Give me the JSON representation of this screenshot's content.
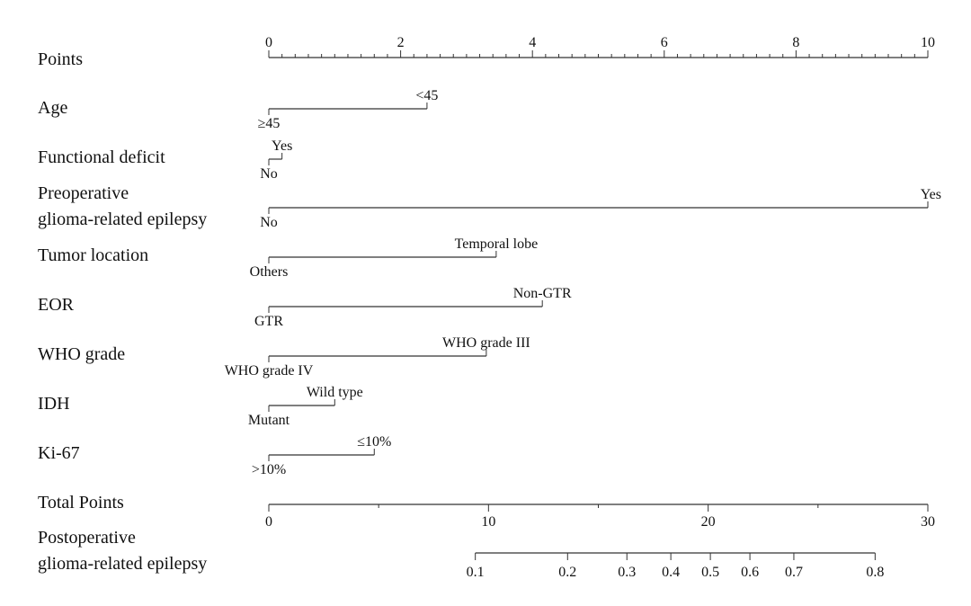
{
  "chart_data": {
    "type": "nomogram",
    "points_scale": {
      "label": "Points",
      "min": 0,
      "max": 10,
      "major_ticks": [
        0,
        2,
        4,
        6,
        8,
        10
      ],
      "minor_step": 0.2
    },
    "variables": [
      {
        "label": "Age",
        "levels": [
          {
            "name": "≥45",
            "points": 0,
            "side": "below"
          },
          {
            "name": "<45",
            "points": 2.4,
            "side": "above"
          }
        ]
      },
      {
        "label": "Functional deficit",
        "levels": [
          {
            "name": "No",
            "points": 0,
            "side": "below"
          },
          {
            "name": "Yes",
            "points": 0.2,
            "side": "above"
          }
        ]
      },
      {
        "label": [
          "Preoperative",
          "glioma-related epilepsy"
        ],
        "levels": [
          {
            "name": "No",
            "points": 0,
            "side": "below"
          },
          {
            "name": "Yes",
            "points": 10,
            "side": "above"
          }
        ]
      },
      {
        "label": "Tumor location",
        "levels": [
          {
            "name": "Others",
            "points": 0,
            "side": "below"
          },
          {
            "name": "Temporal lobe",
            "points": 3.45,
            "side": "above"
          }
        ]
      },
      {
        "label": "EOR",
        "levels": [
          {
            "name": "GTR",
            "points": 0,
            "side": "below"
          },
          {
            "name": "Non-GTR",
            "points": 4.15,
            "side": "above"
          }
        ]
      },
      {
        "label": "WHO grade",
        "levels": [
          {
            "name": "WHO grade IV",
            "points": 0,
            "side": "below"
          },
          {
            "name": "WHO grade III",
            "points": 3.3,
            "side": "above"
          }
        ]
      },
      {
        "label": "IDH",
        "levels": [
          {
            "name": "Mutant",
            "points": 0,
            "side": "below"
          },
          {
            "name": "Wild type",
            "points": 1.0,
            "side": "above"
          }
        ]
      },
      {
        "label": "Ki-67",
        "levels": [
          {
            "name": ">10%",
            "points": 0,
            "side": "below"
          },
          {
            "name": "≤10%",
            "points": 1.6,
            "side": "above"
          }
        ]
      }
    ],
    "total_points": {
      "label": "Total Points",
      "min": 0,
      "max": 30,
      "major_ticks": [
        0,
        10,
        20,
        30
      ],
      "minor_step": 5
    },
    "outcome": {
      "label": [
        "Postoperative",
        "glioma-related epilepsy"
      ],
      "ticks": [
        {
          "label": "0.1",
          "total_points": 9.4
        },
        {
          "label": "0.2",
          "total_points": 13.6
        },
        {
          "label": "0.3",
          "total_points": 16.3
        },
        {
          "label": "0.4",
          "total_points": 18.3
        },
        {
          "label": "0.5",
          "total_points": 20.1
        },
        {
          "label": "0.6",
          "total_points": 21.9
        },
        {
          "label": "0.7",
          "total_points": 23.9
        },
        {
          "label": "0.8",
          "total_points": 27.6
        }
      ]
    }
  }
}
